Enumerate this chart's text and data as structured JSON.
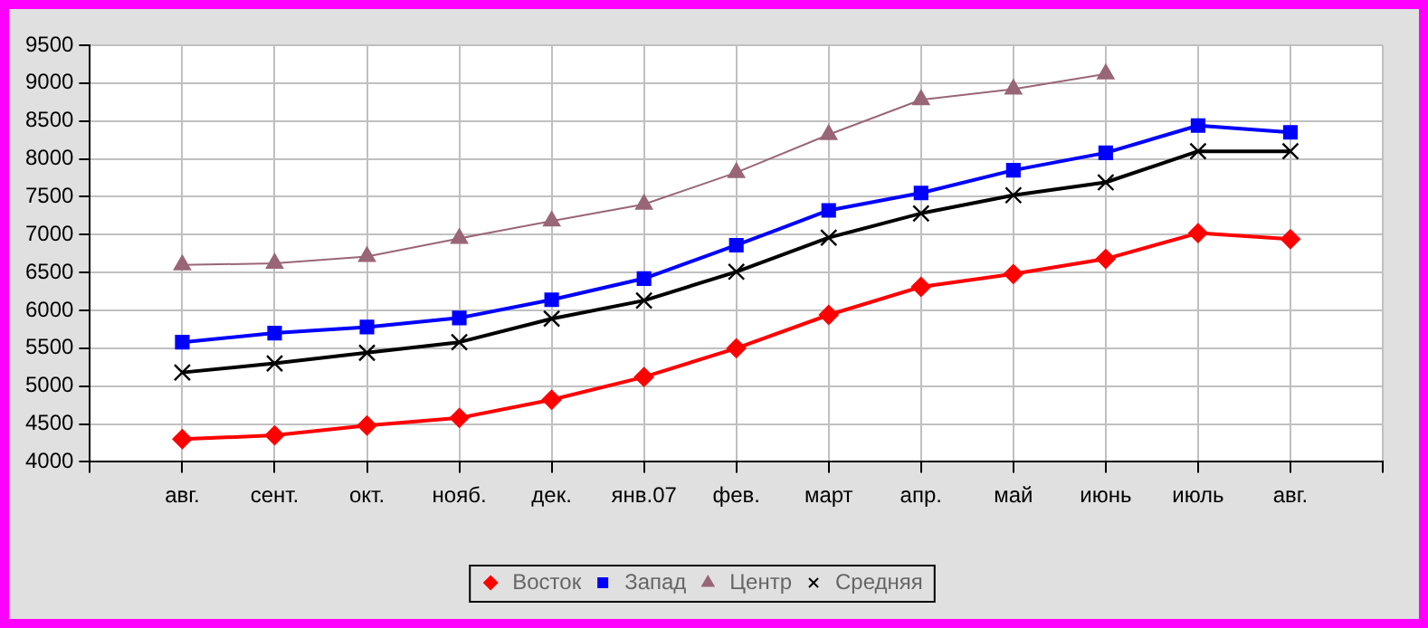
{
  "chart_data": {
    "type": "line",
    "categories": [
      null,
      "авг.",
      "сент.",
      "окт.",
      "нояб.",
      "дек.",
      "янв.07",
      "фев.",
      "март",
      "апр.",
      "май",
      "июнь",
      "июль",
      "авг.",
      null
    ],
    "series": [
      {
        "name": "Восток",
        "color": "#ff0000",
        "marker": "diamond",
        "values": [
          null,
          4300,
          4350,
          4480,
          4580,
          4820,
          5120,
          5500,
          5940,
          6310,
          6480,
          6680,
          7020,
          6940,
          null
        ]
      },
      {
        "name": "Запад",
        "color": "#0000ff",
        "marker": "square",
        "values": [
          null,
          5580,
          5700,
          5780,
          5900,
          6140,
          6420,
          6860,
          7320,
          7550,
          7850,
          8080,
          8440,
          8350,
          null
        ]
      },
      {
        "name": "Центр",
        "color": "#996677",
        "marker": "triangle",
        "values": [
          null,
          6600,
          6620,
          6710,
          6950,
          7180,
          7400,
          7820,
          8320,
          8780,
          8920,
          9120,
          null,
          null,
          null
        ]
      },
      {
        "name": "Средняя",
        "color": "#000000",
        "marker": "cross",
        "values": [
          null,
          5180,
          5300,
          5440,
          5580,
          5890,
          6130,
          6510,
          6960,
          7280,
          7520,
          7690,
          8100,
          8100,
          null
        ]
      }
    ],
    "ylim": [
      4000,
      9500
    ],
    "yticks": [
      4000,
      4500,
      5000,
      5500,
      6000,
      6500,
      7000,
      7500,
      8000,
      8500,
      9000,
      9500
    ],
    "grid": true,
    "legend": "bottom",
    "line_style": "solid"
  }
}
